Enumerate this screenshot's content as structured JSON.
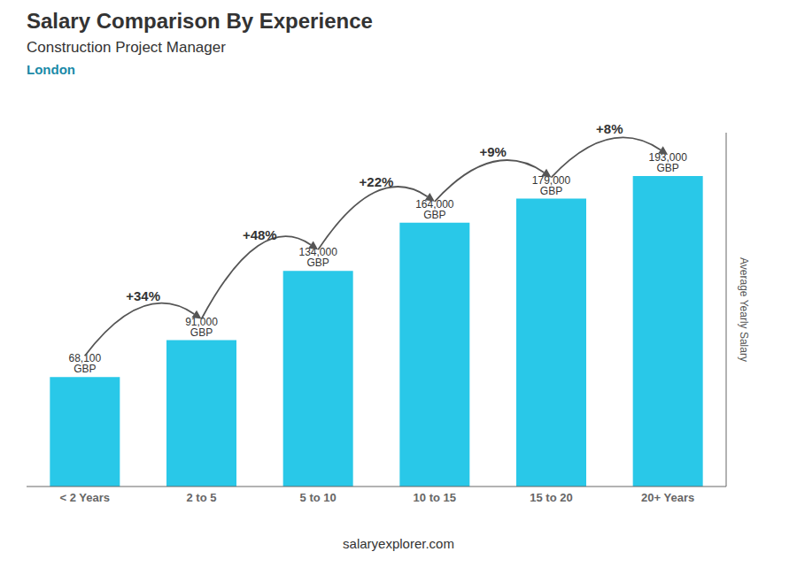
{
  "chart_data": {
    "type": "bar",
    "title": "Salary Comparison By Experience",
    "subtitle": "Construction Project Manager",
    "annotations": [
      "London",
      "salaryexplorer.com"
    ],
    "categories": [
      "< 2 Years",
      "2 to 5",
      "5 to 10",
      "10 to 15",
      "15 to 20",
      "20+ Years"
    ],
    "values": [
      68100,
      91000,
      134000,
      164000,
      179000,
      193000
    ],
    "value_labels": [
      "68,100 GBP",
      "91,000 GBP",
      "134,000 GBP",
      "164,000 GBP",
      "179,000 GBP",
      "193,000 GBP"
    ],
    "data_labels": true,
    "pct_changes": [
      "+34%",
      "+48%",
      "+22%",
      "+9%",
      "+8%"
    ],
    "ylabel": "Average Yearly Salary",
    "color": "#29c8e8",
    "ylim": [
      0,
      220000
    ],
    "tick_labels": "x",
    "grid": false
  }
}
